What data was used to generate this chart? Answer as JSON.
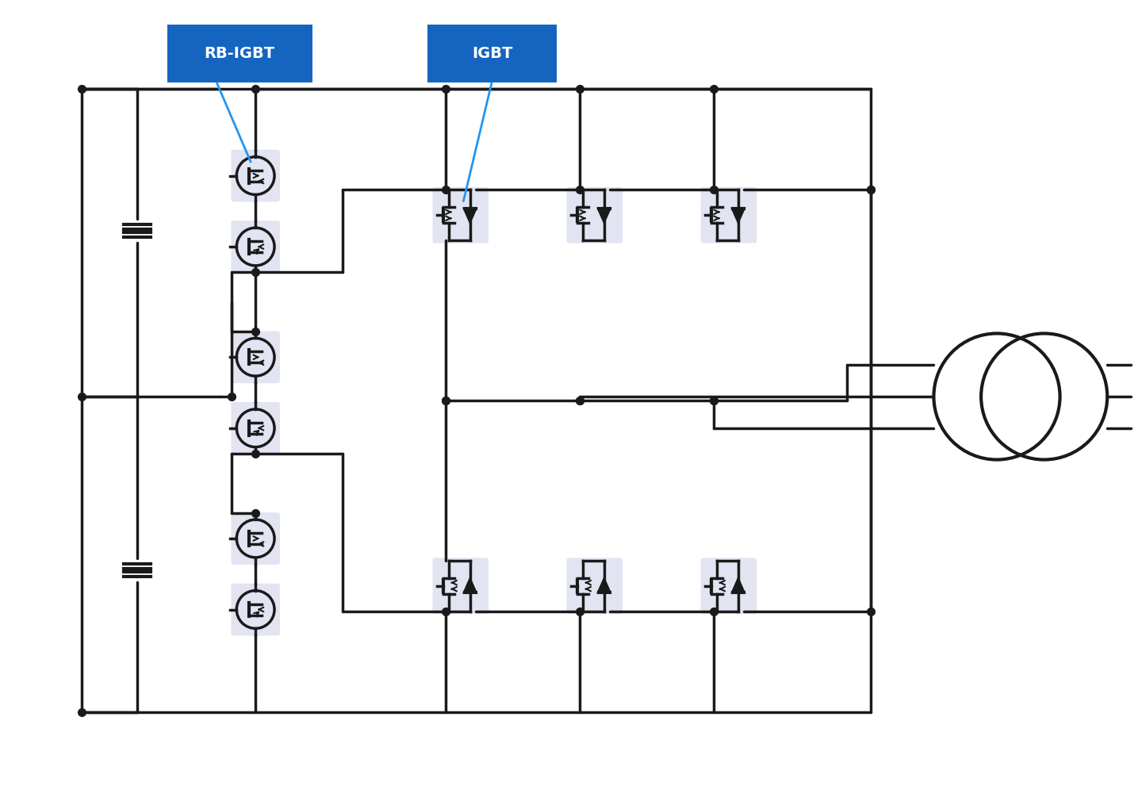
{
  "bg_color": "#ffffff",
  "line_color": "#1a1a1a",
  "blue_label_bg": "#1565C0",
  "blue_label_text": "#ffffff",
  "arrow_color": "#2196F3",
  "component_bg": "#dde0f0",
  "label1": "RB-IGBT",
  "label2": "IGBT",
  "lw": 2.5,
  "dot_size": 7
}
